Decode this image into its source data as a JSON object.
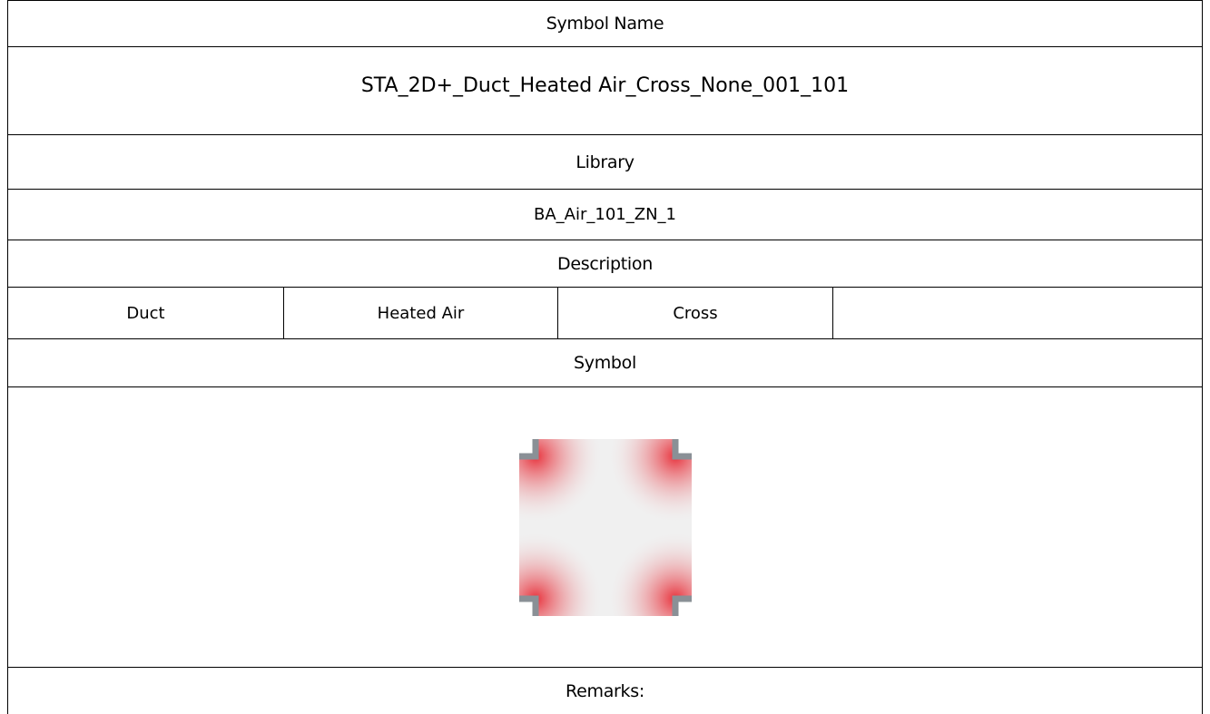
{
  "table": {
    "symbol_name_label": "Symbol Name",
    "symbol_name": "STA_2D+_Duct_Heated Air_Cross_None_001_101",
    "library_label": "Library",
    "library": "BA_Air_101_ZN_1",
    "description_label": "Description",
    "description": [
      "Duct",
      "Heated Air",
      "Cross"
    ],
    "symbol_label": "Symbol",
    "remarks_label": "Remarks:"
  }
}
